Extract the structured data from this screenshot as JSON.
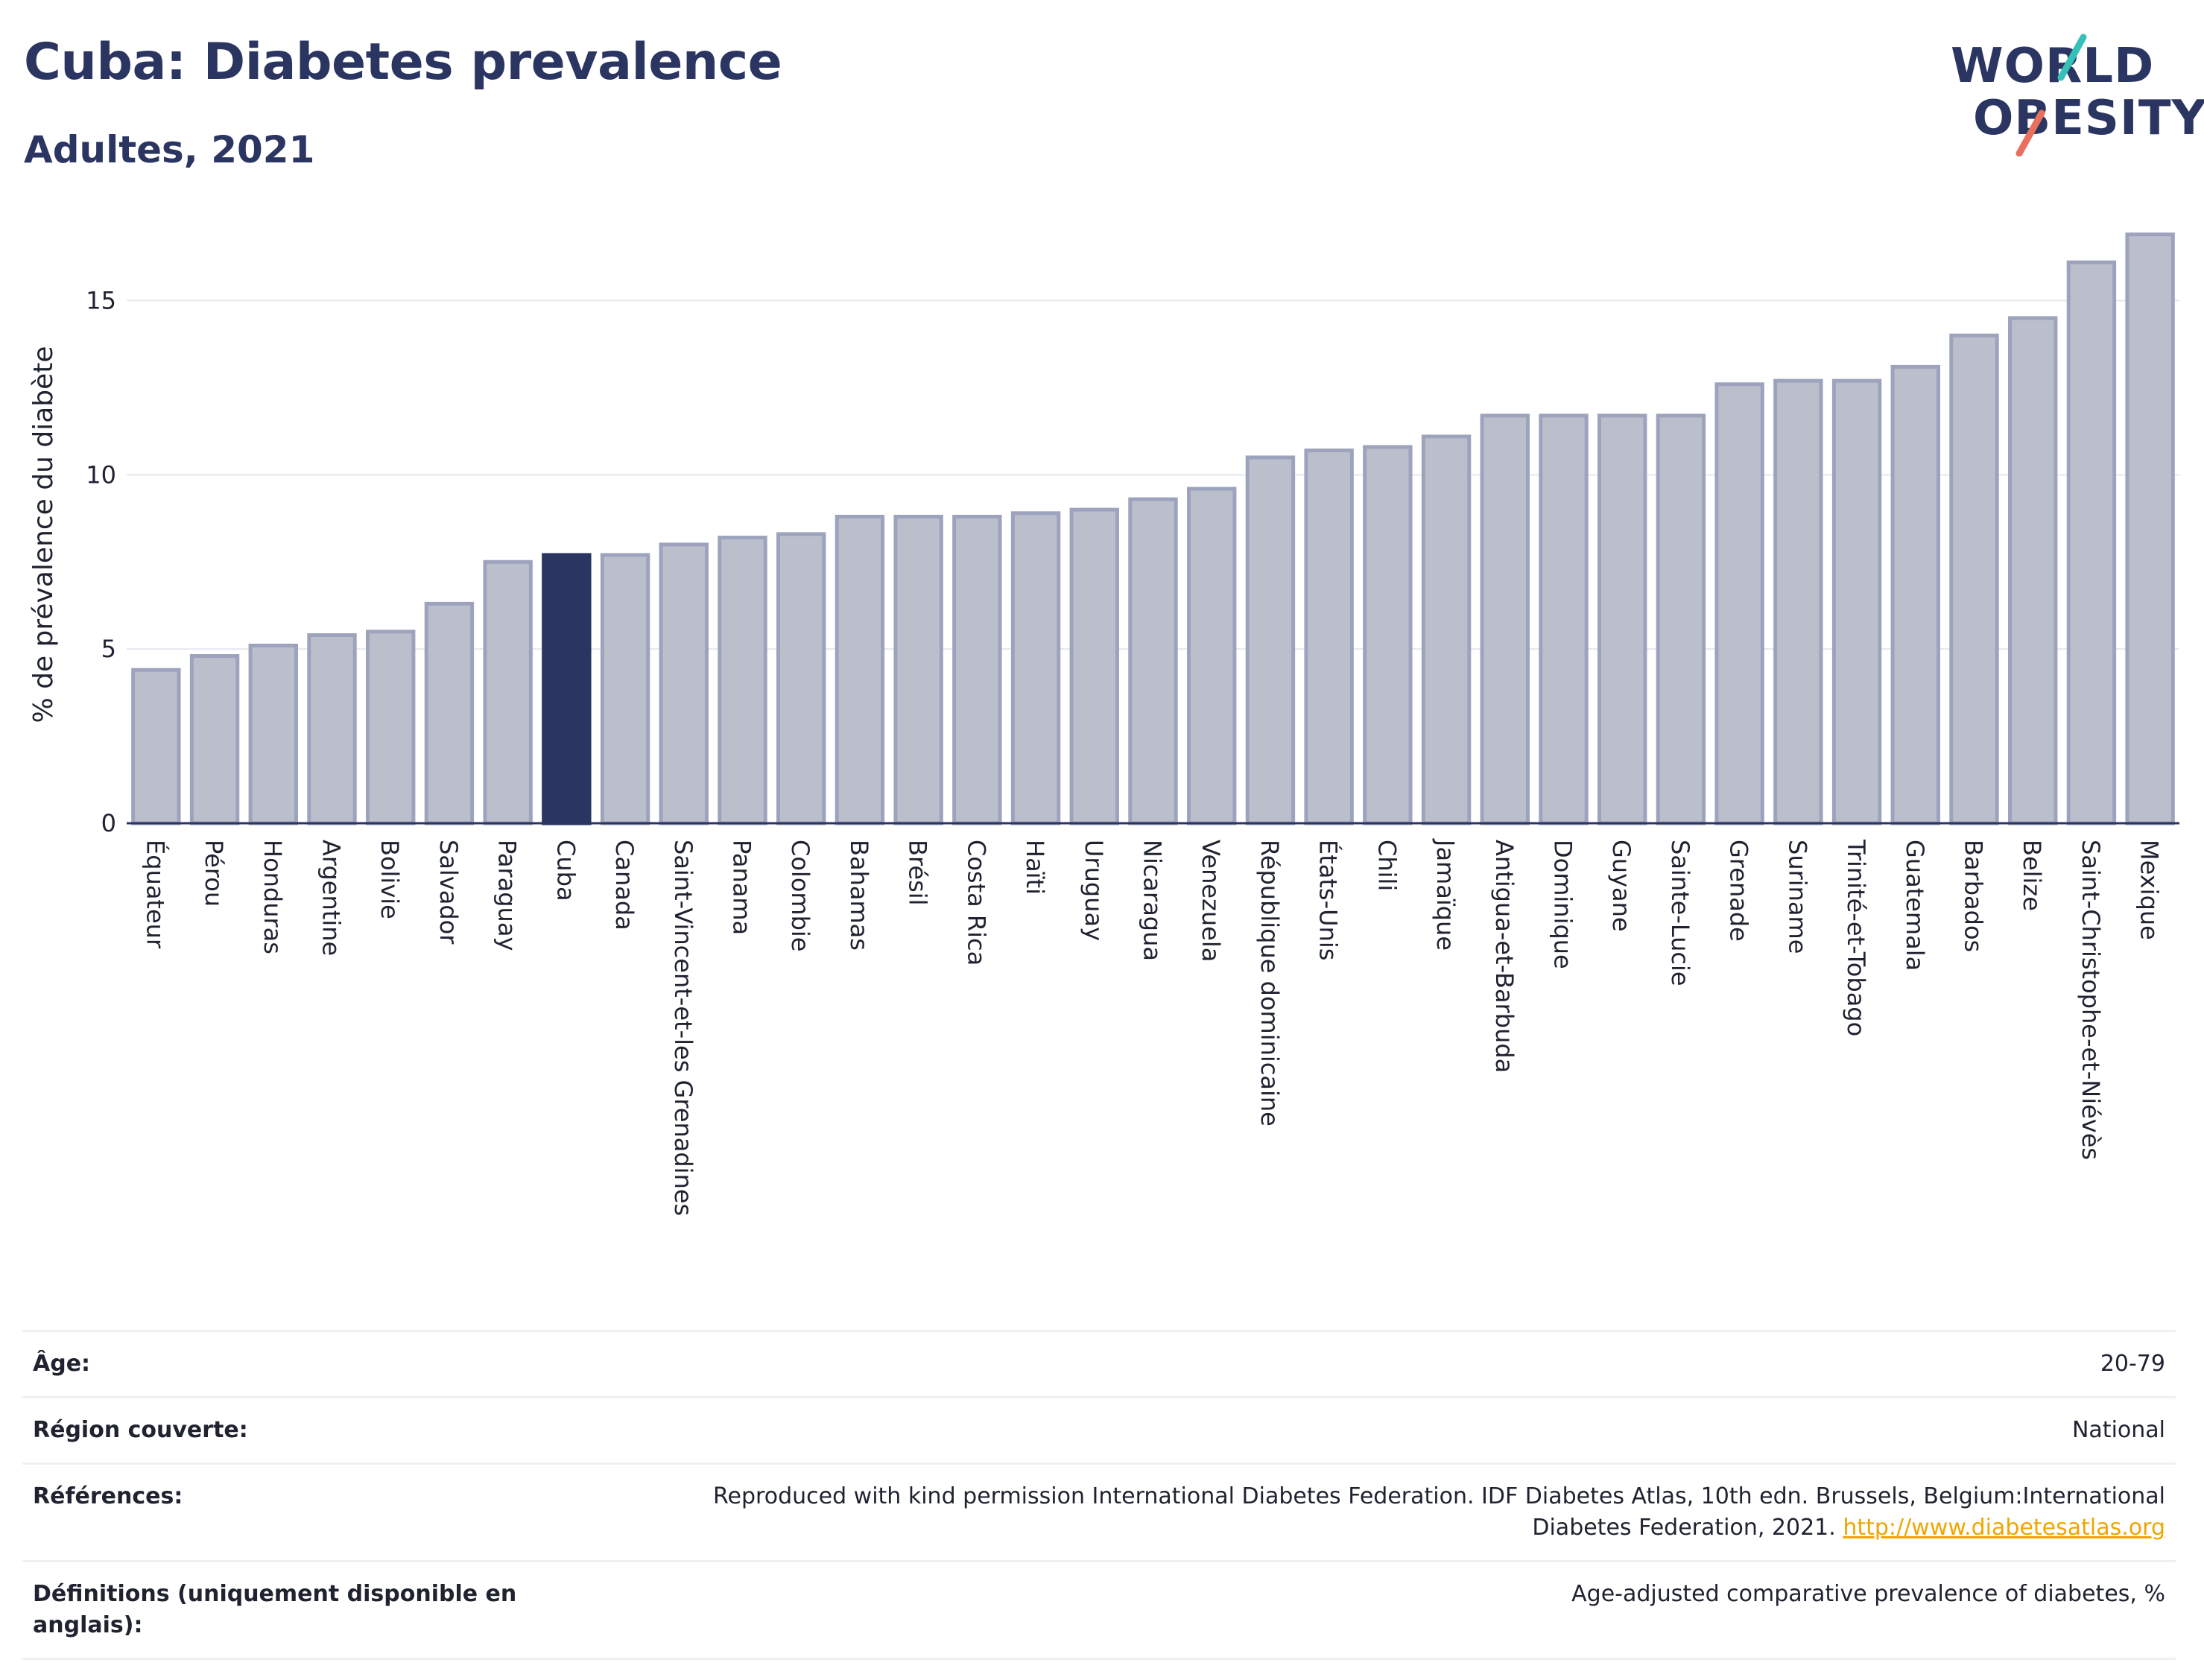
{
  "header": {
    "title": "Cuba: Diabetes prevalence",
    "subtitle": "Adultes, 2021"
  },
  "logo": {
    "line1": "WORLD",
    "line2": "OBESITY",
    "slash_colors": [
      "#36c1b8",
      "#e8705d"
    ]
  },
  "colors": {
    "bar_fill": "#bbbfcc",
    "bar_stroke": "#9da3bd",
    "highlight": "#2b3561",
    "axis": "#2b3561",
    "grid": "#e6e8ee",
    "text": "#1f2330"
  },
  "chart_data": {
    "type": "bar",
    "title": "",
    "xlabel": "",
    "ylabel": "% de prévalence du diabète",
    "ylim": [
      0,
      17
    ],
    "yticks": [
      0,
      5,
      10,
      15
    ],
    "grid": true,
    "highlight": "Cuba",
    "categories": [
      "Équateur",
      "Pérou",
      "Honduras",
      "Argentine",
      "Bolivie",
      "Salvador",
      "Paraguay",
      "Cuba",
      "Canada",
      "Saint-Vincent-et-les Grenadines",
      "Panama",
      "Colombie",
      "Bahamas",
      "Brésil",
      "Costa Rica",
      "Haïti",
      "Uruguay",
      "Nicaragua",
      "Venezuela",
      "République dominicaine",
      "États-Unis",
      "Chili",
      "Jamaïque",
      "Antigua-et-Barbuda",
      "Dominique",
      "Guyane",
      "Sainte-Lucie",
      "Grenade",
      "Suriname",
      "Trinité-et-Tobago",
      "Guatemala",
      "Barbados",
      "Belize",
      "Saint-Christophe-et-Niévès",
      "Mexique"
    ],
    "values": [
      4.4,
      4.8,
      5.1,
      5.4,
      5.5,
      6.3,
      7.5,
      7.7,
      7.7,
      8.0,
      8.2,
      8.3,
      8.8,
      8.8,
      8.8,
      8.9,
      9.0,
      9.3,
      9.6,
      10.5,
      10.7,
      10.8,
      11.1,
      11.7,
      11.7,
      11.7,
      11.7,
      12.6,
      12.7,
      12.7,
      13.1,
      14.0,
      14.5,
      16.1,
      16.9
    ]
  },
  "info": {
    "age_label": "Âge:",
    "age_value": "20-79",
    "region_label": "Région couverte:",
    "region_value": "National",
    "refs_label": "Références:",
    "refs_value": "Reproduced with kind permission International Diabetes Federation.  IDF Diabetes Atlas, 10th edn. Brussels, Belgium:International Diabetes Federation, 2021.",
    "refs_link": "http://www.diabetesatlas.org",
    "defs_label": "Définitions (uniquement disponible en anglais):",
    "defs_value": "Age-adjusted comparative prevalence of diabetes, %"
  }
}
